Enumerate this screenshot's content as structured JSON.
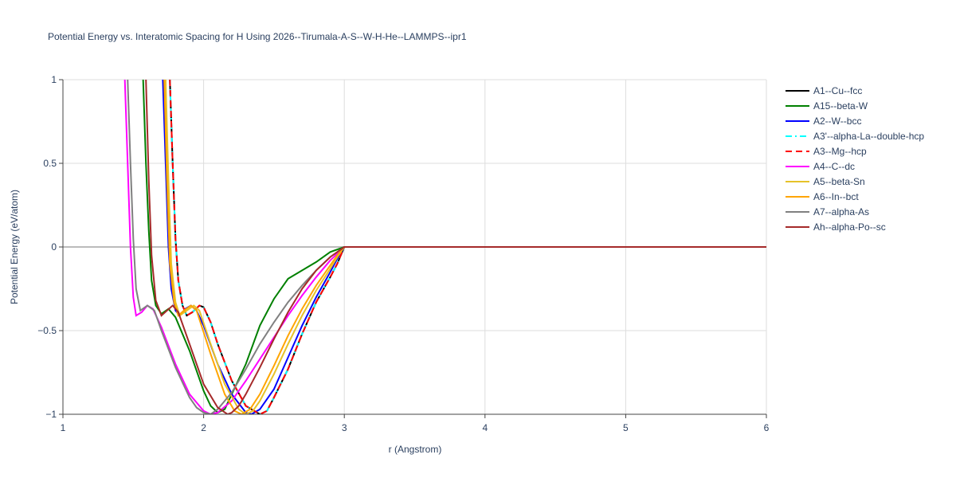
{
  "chart_data": {
    "type": "line",
    "title": "Potential Energy vs. Interatomic Spacing for H Using 2026--Tirumala-A-S--W-H-He--LAMMPS--ipr1",
    "x_label": "r (Angstrom)",
    "y_label": "Potential Energy (eV/atom)",
    "xlim": [
      1,
      6
    ],
    "ylim": [
      -1,
      1
    ],
    "xticks": [
      1,
      2,
      3,
      4,
      5,
      6
    ],
    "yticks": [
      {
        "value": -1,
        "label": "−1"
      },
      {
        "value": -0.5,
        "label": "−0.5"
      },
      0,
      0.5,
      1
    ],
    "grid": true,
    "legend": "right",
    "series": [
      {
        "name": "A1--Cu--fcc",
        "color": "#000000",
        "dash": "solid",
        "x": [
          1.76,
          1.78,
          1.8,
          1.82,
          1.85,
          1.88,
          1.92,
          1.97,
          2.0,
          2.05,
          2.1,
          2.2,
          2.3,
          2.4,
          2.45,
          2.5,
          2.6,
          2.7,
          2.8,
          2.9,
          2.95,
          3.0,
          6
        ],
        "values": [
          1,
          0.5,
          0.05,
          -0.2,
          -0.35,
          -0.41,
          -0.39,
          -0.35,
          -0.36,
          -0.45,
          -0.58,
          -0.8,
          -0.95,
          -1.0,
          -0.98,
          -0.9,
          -0.73,
          -0.52,
          -0.33,
          -0.18,
          -0.1,
          0,
          0
        ]
      },
      {
        "name": "A15--beta-W",
        "color": "#008000",
        "dash": "solid",
        "x": [
          1.57,
          1.59,
          1.61,
          1.63,
          1.66,
          1.7,
          1.75,
          1.8,
          1.9,
          2.0,
          2.05,
          2.1,
          2.15,
          2.2,
          2.3,
          2.4,
          2.5,
          2.6,
          2.7,
          2.8,
          2.9,
          3.0,
          6
        ],
        "values": [
          1,
          0.5,
          0.1,
          -0.2,
          -0.35,
          -0.4,
          -0.37,
          -0.42,
          -0.62,
          -0.86,
          -0.95,
          -0.99,
          -0.97,
          -0.88,
          -0.7,
          -0.47,
          -0.31,
          -0.19,
          -0.14,
          -0.09,
          -0.03,
          0,
          0
        ]
      },
      {
        "name": "A2--W--bcc",
        "color": "#0000ff",
        "dash": "solid",
        "x": [
          1.71,
          1.73,
          1.75,
          1.77,
          1.8,
          1.83,
          1.87,
          1.91,
          1.95,
          2.0,
          2.1,
          2.2,
          2.3,
          2.34,
          2.4,
          2.5,
          2.6,
          2.7,
          2.8,
          2.9,
          2.95,
          3.0,
          6
        ],
        "values": [
          1,
          0.5,
          0,
          -0.25,
          -0.38,
          -0.41,
          -0.37,
          -0.35,
          -0.38,
          -0.47,
          -0.7,
          -0.88,
          -0.99,
          -1.0,
          -0.97,
          -0.85,
          -0.66,
          -0.47,
          -0.3,
          -0.15,
          -0.07,
          0,
          0
        ]
      },
      {
        "name": "A3'--alpha-La--double-hcp",
        "color": "#00ffff",
        "dash": "dashdot",
        "x": [
          1.76,
          1.78,
          1.8,
          1.82,
          1.85,
          1.88,
          1.92,
          1.97,
          2.0,
          2.05,
          2.1,
          2.2,
          2.3,
          2.4,
          2.45,
          2.5,
          2.6,
          2.7,
          2.8,
          2.9,
          2.95,
          3.0,
          6
        ],
        "values": [
          1,
          0.5,
          0.05,
          -0.2,
          -0.35,
          -0.41,
          -0.39,
          -0.35,
          -0.36,
          -0.45,
          -0.58,
          -0.8,
          -0.95,
          -1.0,
          -0.98,
          -0.9,
          -0.73,
          -0.52,
          -0.33,
          -0.18,
          -0.1,
          0,
          0
        ]
      },
      {
        "name": "A3--Mg--hcp",
        "color": "#ff0000",
        "dash": "dash",
        "x": [
          1.76,
          1.78,
          1.8,
          1.82,
          1.85,
          1.88,
          1.92,
          1.97,
          2.0,
          2.05,
          2.1,
          2.2,
          2.3,
          2.4,
          2.45,
          2.5,
          2.6,
          2.7,
          2.8,
          2.9,
          2.95,
          3.0,
          6
        ],
        "values": [
          1,
          0.5,
          0.05,
          -0.2,
          -0.35,
          -0.41,
          -0.39,
          -0.35,
          -0.36,
          -0.45,
          -0.58,
          -0.8,
          -0.95,
          -1.0,
          -0.98,
          -0.9,
          -0.73,
          -0.52,
          -0.33,
          -0.18,
          -0.1,
          0,
          0
        ]
      },
      {
        "name": "A4--C--dc",
        "color": "#ff00ff",
        "dash": "solid",
        "x": [
          1.44,
          1.46,
          1.48,
          1.5,
          1.52,
          1.56,
          1.6,
          1.64,
          1.7,
          1.8,
          1.9,
          2.0,
          2.05,
          2.1,
          2.2,
          2.3,
          2.4,
          2.5,
          2.6,
          2.7,
          2.8,
          2.9,
          3.0,
          6
        ],
        "values": [
          1,
          0.5,
          0,
          -0.3,
          -0.41,
          -0.39,
          -0.35,
          -0.37,
          -0.48,
          -0.7,
          -0.88,
          -0.98,
          -1.0,
          -0.99,
          -0.92,
          -0.8,
          -0.67,
          -0.54,
          -0.41,
          -0.29,
          -0.18,
          -0.08,
          0,
          0
        ]
      },
      {
        "name": "A5--beta-Sn",
        "color": "#e6c229",
        "dash": "solid",
        "x": [
          1.73,
          1.75,
          1.77,
          1.8,
          1.83,
          1.88,
          1.93,
          1.97,
          2.05,
          2.15,
          2.25,
          2.3,
          2.35,
          2.4,
          2.5,
          2.6,
          2.7,
          2.8,
          2.9,
          2.95,
          3.0,
          6
        ],
        "values": [
          1,
          0.4,
          -0.1,
          -0.33,
          -0.41,
          -0.38,
          -0.35,
          -0.38,
          -0.58,
          -0.82,
          -0.97,
          -1.0,
          -0.98,
          -0.92,
          -0.76,
          -0.58,
          -0.41,
          -0.26,
          -0.13,
          -0.06,
          0,
          0
        ]
      },
      {
        "name": "A6--In--bct",
        "color": "#ffa500",
        "dash": "solid",
        "x": [
          1.72,
          1.74,
          1.76,
          1.79,
          1.82,
          1.86,
          1.91,
          1.95,
          2.05,
          2.15,
          2.22,
          2.27,
          2.33,
          2.4,
          2.5,
          2.6,
          2.7,
          2.8,
          2.9,
          2.95,
          3.0,
          6
        ],
        "values": [
          1,
          0.4,
          -0.1,
          -0.33,
          -0.41,
          -0.38,
          -0.35,
          -0.38,
          -0.64,
          -0.88,
          -0.98,
          -1.0,
          -0.97,
          -0.88,
          -0.71,
          -0.53,
          -0.37,
          -0.23,
          -0.11,
          -0.05,
          0,
          0
        ]
      },
      {
        "name": "A7--alpha-As",
        "color": "#808080",
        "dash": "solid",
        "x": [
          1.46,
          1.48,
          1.5,
          1.52,
          1.55,
          1.6,
          1.65,
          1.7,
          1.8,
          1.9,
          1.95,
          2.0,
          2.05,
          2.1,
          2.2,
          2.3,
          2.4,
          2.5,
          2.6,
          2.7,
          2.8,
          2.9,
          3.0,
          6
        ],
        "values": [
          1,
          0.5,
          0.05,
          -0.25,
          -0.38,
          -0.35,
          -0.38,
          -0.5,
          -0.72,
          -0.9,
          -0.96,
          -0.99,
          -1.0,
          -0.97,
          -0.87,
          -0.73,
          -0.58,
          -0.45,
          -0.33,
          -0.23,
          -0.14,
          -0.06,
          0,
          0
        ]
      },
      {
        "name": "Ah--alpha-Po--sc",
        "color": "#a52a2a",
        "dash": "solid",
        "x": [
          1.59,
          1.61,
          1.63,
          1.66,
          1.7,
          1.74,
          1.78,
          1.82,
          1.9,
          2.0,
          2.1,
          2.17,
          2.2,
          2.25,
          2.3,
          2.4,
          2.5,
          2.6,
          2.7,
          2.8,
          2.9,
          3.0,
          6
        ],
        "values": [
          1,
          0.4,
          -0.05,
          -0.32,
          -0.41,
          -0.38,
          -0.35,
          -0.39,
          -0.58,
          -0.82,
          -0.96,
          -1.0,
          -0.99,
          -0.95,
          -0.88,
          -0.72,
          -0.55,
          -0.39,
          -0.25,
          -0.14,
          -0.06,
          0,
          0
        ]
      }
    ]
  }
}
